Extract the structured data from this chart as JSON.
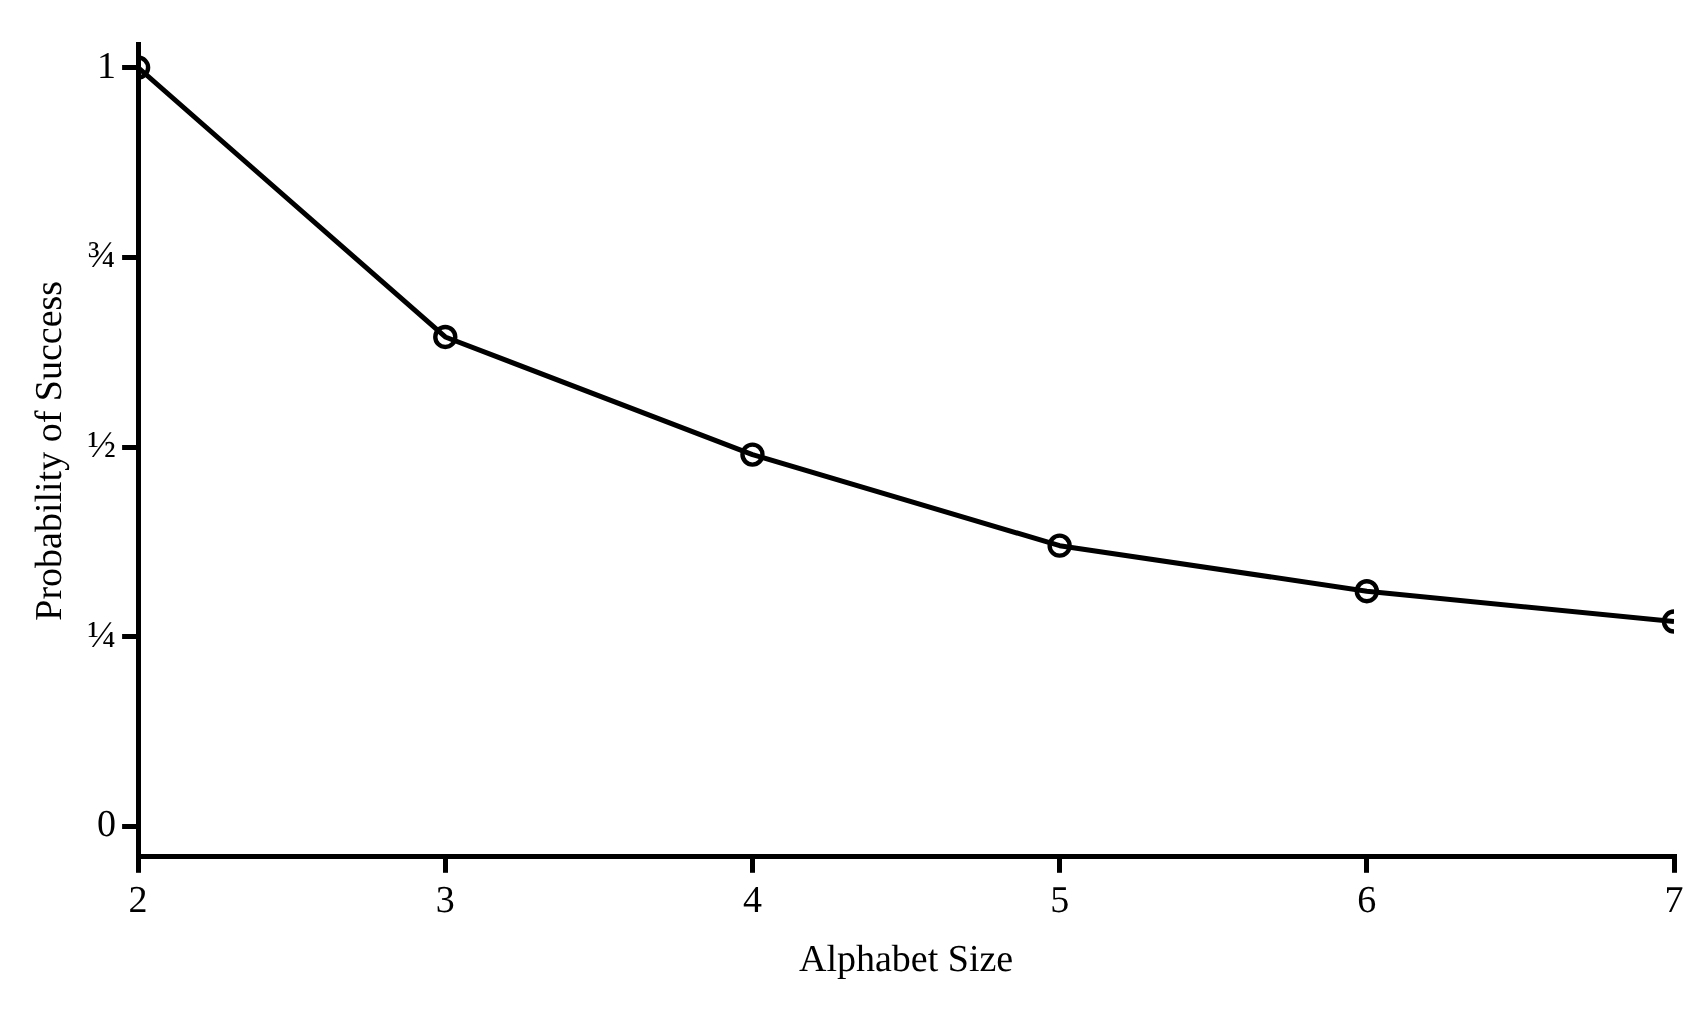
{
  "chart_data": {
    "type": "line",
    "xlabel": "Alphabet Size",
    "ylabel": "Probability of Success",
    "x": [
      2,
      3,
      4,
      5,
      6,
      7
    ],
    "series": [
      {
        "color": "#000000",
        "values": [
          1.0,
          0.645,
          0.49,
          0.37,
          0.31,
          0.27
        ]
      }
    ],
    "xlim": [
      2,
      7
    ],
    "xticks": [
      2,
      3,
      4,
      5,
      6,
      7
    ],
    "ylim": [
      -0.04,
      1.03
    ],
    "yticks": [
      0,
      {
        "value": 0.25,
        "label": "¼"
      },
      {
        "value": 0.5,
        "label": "½"
      },
      {
        "value": 0.75,
        "label": "¾"
      },
      1
    ],
    "grid": false,
    "legend": false,
    "marker": "circle",
    "line_style": "solid"
  }
}
